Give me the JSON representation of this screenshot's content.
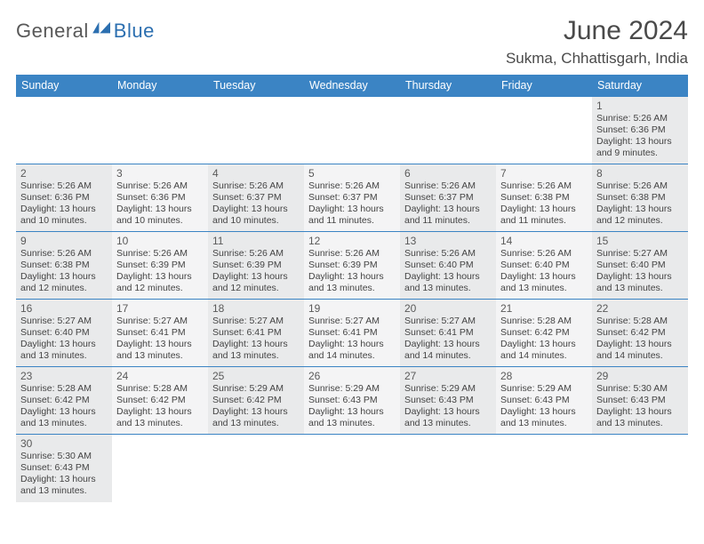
{
  "logo": {
    "part1": "General",
    "part2": "Blue"
  },
  "title": "June 2024",
  "location": "Sukma, Chhattisgarh, India",
  "colors": {
    "header_bg": "#3b84c4",
    "header_fg": "#ffffff",
    "cell_odd": "#e9eaeb",
    "cell_even": "#f4f4f5",
    "logo_blue": "#2c6fb0",
    "text": "#3a3a3a"
  },
  "weekdays": [
    "Sunday",
    "Monday",
    "Tuesday",
    "Wednesday",
    "Thursday",
    "Friday",
    "Saturday"
  ],
  "weeks": [
    [
      null,
      null,
      null,
      null,
      null,
      null,
      {
        "d": "1",
        "sr": "5:26 AM",
        "ss": "6:36 PM",
        "dl": "13 hours and 9 minutes."
      }
    ],
    [
      {
        "d": "2",
        "sr": "5:26 AM",
        "ss": "6:36 PM",
        "dl": "13 hours and 10 minutes."
      },
      {
        "d": "3",
        "sr": "5:26 AM",
        "ss": "6:36 PM",
        "dl": "13 hours and 10 minutes."
      },
      {
        "d": "4",
        "sr": "5:26 AM",
        "ss": "6:37 PM",
        "dl": "13 hours and 10 minutes."
      },
      {
        "d": "5",
        "sr": "5:26 AM",
        "ss": "6:37 PM",
        "dl": "13 hours and 11 minutes."
      },
      {
        "d": "6",
        "sr": "5:26 AM",
        "ss": "6:37 PM",
        "dl": "13 hours and 11 minutes."
      },
      {
        "d": "7",
        "sr": "5:26 AM",
        "ss": "6:38 PM",
        "dl": "13 hours and 11 minutes."
      },
      {
        "d": "8",
        "sr": "5:26 AM",
        "ss": "6:38 PM",
        "dl": "13 hours and 12 minutes."
      }
    ],
    [
      {
        "d": "9",
        "sr": "5:26 AM",
        "ss": "6:38 PM",
        "dl": "13 hours and 12 minutes."
      },
      {
        "d": "10",
        "sr": "5:26 AM",
        "ss": "6:39 PM",
        "dl": "13 hours and 12 minutes."
      },
      {
        "d": "11",
        "sr": "5:26 AM",
        "ss": "6:39 PM",
        "dl": "13 hours and 12 minutes."
      },
      {
        "d": "12",
        "sr": "5:26 AM",
        "ss": "6:39 PM",
        "dl": "13 hours and 13 minutes."
      },
      {
        "d": "13",
        "sr": "5:26 AM",
        "ss": "6:40 PM",
        "dl": "13 hours and 13 minutes."
      },
      {
        "d": "14",
        "sr": "5:26 AM",
        "ss": "6:40 PM",
        "dl": "13 hours and 13 minutes."
      },
      {
        "d": "15",
        "sr": "5:27 AM",
        "ss": "6:40 PM",
        "dl": "13 hours and 13 minutes."
      }
    ],
    [
      {
        "d": "16",
        "sr": "5:27 AM",
        "ss": "6:40 PM",
        "dl": "13 hours and 13 minutes."
      },
      {
        "d": "17",
        "sr": "5:27 AM",
        "ss": "6:41 PM",
        "dl": "13 hours and 13 minutes."
      },
      {
        "d": "18",
        "sr": "5:27 AM",
        "ss": "6:41 PM",
        "dl": "13 hours and 13 minutes."
      },
      {
        "d": "19",
        "sr": "5:27 AM",
        "ss": "6:41 PM",
        "dl": "13 hours and 14 minutes."
      },
      {
        "d": "20",
        "sr": "5:27 AM",
        "ss": "6:41 PM",
        "dl": "13 hours and 14 minutes."
      },
      {
        "d": "21",
        "sr": "5:28 AM",
        "ss": "6:42 PM",
        "dl": "13 hours and 14 minutes."
      },
      {
        "d": "22",
        "sr": "5:28 AM",
        "ss": "6:42 PM",
        "dl": "13 hours and 14 minutes."
      }
    ],
    [
      {
        "d": "23",
        "sr": "5:28 AM",
        "ss": "6:42 PM",
        "dl": "13 hours and 13 minutes."
      },
      {
        "d": "24",
        "sr": "5:28 AM",
        "ss": "6:42 PM",
        "dl": "13 hours and 13 minutes."
      },
      {
        "d": "25",
        "sr": "5:29 AM",
        "ss": "6:42 PM",
        "dl": "13 hours and 13 minutes."
      },
      {
        "d": "26",
        "sr": "5:29 AM",
        "ss": "6:43 PM",
        "dl": "13 hours and 13 minutes."
      },
      {
        "d": "27",
        "sr": "5:29 AM",
        "ss": "6:43 PM",
        "dl": "13 hours and 13 minutes."
      },
      {
        "d": "28",
        "sr": "5:29 AM",
        "ss": "6:43 PM",
        "dl": "13 hours and 13 minutes."
      },
      {
        "d": "29",
        "sr": "5:30 AM",
        "ss": "6:43 PM",
        "dl": "13 hours and 13 minutes."
      }
    ],
    [
      {
        "d": "30",
        "sr": "5:30 AM",
        "ss": "6:43 PM",
        "dl": "13 hours and 13 minutes."
      },
      null,
      null,
      null,
      null,
      null,
      null
    ]
  ],
  "labels": {
    "sunrise": "Sunrise: ",
    "sunset": "Sunset: ",
    "daylight": "Daylight: "
  }
}
